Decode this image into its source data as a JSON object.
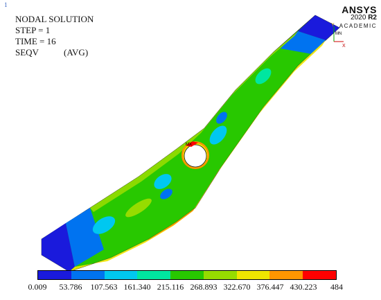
{
  "window": {
    "number": "1"
  },
  "info": {
    "title": "NODAL SOLUTION",
    "step": "STEP = 1",
    "time": "TIME = 16",
    "result": "SEQV",
    "avg": "(AVG)"
  },
  "brand": {
    "name": "ANSYS",
    "version": "2020",
    "release": "R2",
    "edition": "ACADEMIC"
  },
  "triad": {
    "y_label": "Y",
    "x_label": "X"
  },
  "legend": {
    "colors": [
      "#1a1adc",
      "#0073f0",
      "#00c8f0",
      "#00e6a0",
      "#28c800",
      "#96dc00",
      "#f0e600",
      "#ff9600",
      "#ff0000"
    ],
    "labels": [
      "0.009",
      "53.786",
      "107.563",
      "161.340",
      "215.116",
      "268.893",
      "322.670",
      "376.447",
      "430.223",
      "484"
    ]
  }
}
